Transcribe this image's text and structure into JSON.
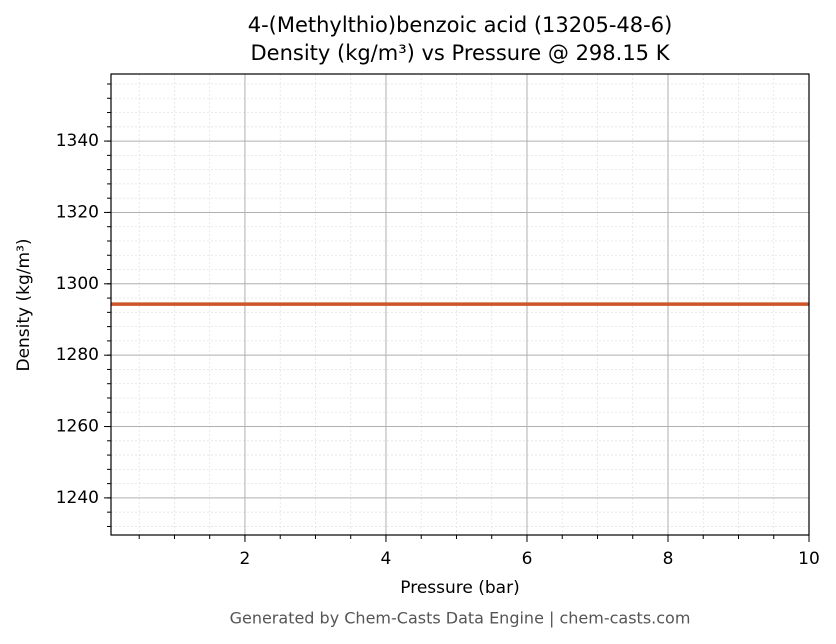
{
  "chart_data": {
    "type": "line",
    "title": "4-(Methylthio)benzoic acid (13205-48-6)",
    "subtitle": "Density (kg/m³) vs Pressure @ 298.15 K",
    "x_label": "Pressure (bar)",
    "y_label": "Density (kg/m³)",
    "footer": "Generated by Chem-Casts Data Engine | chem-casts.com",
    "x": [
      0.1,
      1,
      2,
      3,
      4,
      5,
      6,
      7,
      8,
      9,
      10
    ],
    "series": [
      {
        "color": "#cc5529",
        "values": [
          1294.3,
          1294.3,
          1294.3,
          1294.3,
          1294.3,
          1294.3,
          1294.3,
          1294.3,
          1294.3,
          1294.3,
          1294.3
        ]
      }
    ],
    "xlim": [
      0.1,
      10
    ],
    "xticks": [
      2,
      4,
      6,
      8,
      10
    ],
    "ylim": [
      1229.6,
      1358.8
    ],
    "yticks": [
      1240,
      1260,
      1280,
      1300,
      1320,
      1340
    ],
    "grid": true
  }
}
